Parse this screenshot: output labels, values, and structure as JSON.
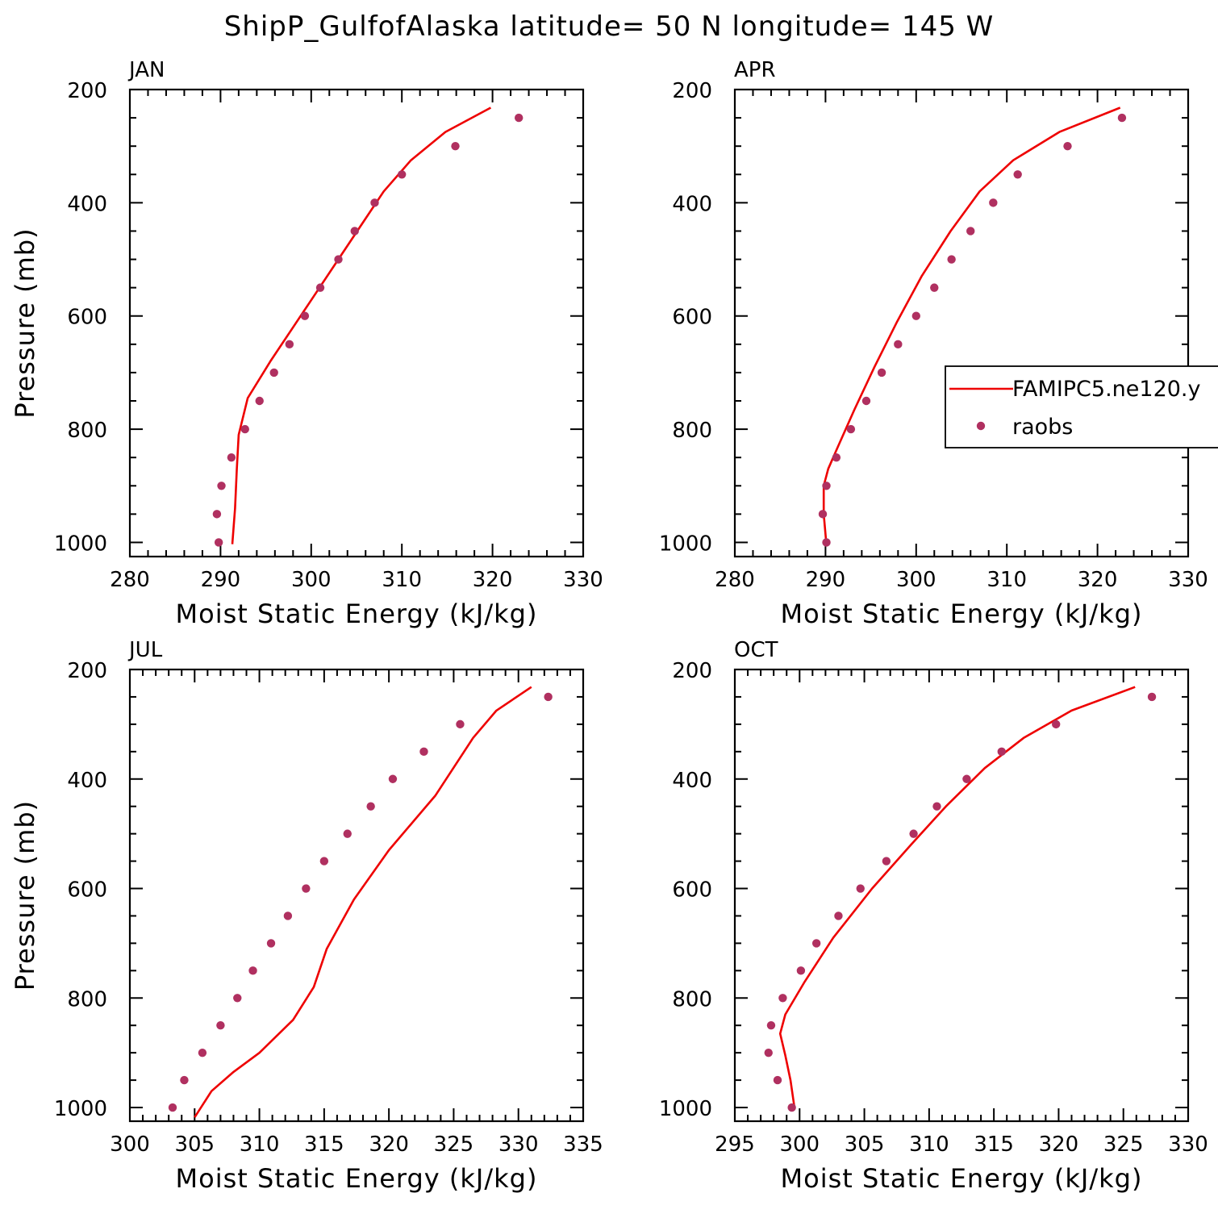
{
  "title": "ShipP_GulfofAlaska  latitude= 50 N longitude= 145 W",
  "colors": {
    "model": "#ee0000",
    "obs": "#b03060",
    "axis": "#000000"
  },
  "legend": {
    "placement": "right-middle",
    "entries": [
      {
        "label": "FAMIPC5.ne120.y",
        "style": "line",
        "color": "#ee0000"
      },
      {
        "label": "raobs",
        "style": "marker",
        "color": "#b03060"
      }
    ]
  },
  "chart_data": [
    {
      "type": "line",
      "panel": "JAN",
      "xlabel": "Moist Static Energy (kJ/kg)",
      "ylabel": "Pressure (mb)",
      "xlim": [
        280,
        330
      ],
      "ylim": [
        1025,
        200
      ],
      "xticks": [
        280,
        290,
        300,
        310,
        320,
        330
      ],
      "yticks": [
        200,
        400,
        600,
        800,
        1000
      ],
      "series": [
        {
          "name": "FAMIPC5.ne120.y",
          "style": "line",
          "x": [
            319.8,
            314.8,
            311.0,
            308.0,
            305.5,
            303.0,
            300.5,
            298.0,
            295.5,
            293.0,
            292.0,
            291.8,
            291.6,
            291.3
          ],
          "y": [
            232,
            275,
            325,
            380,
            440,
            500,
            560,
            620,
            680,
            745,
            810,
            870,
            940,
            1003
          ]
        },
        {
          "name": "raobs",
          "style": "marker",
          "x": [
            322.9,
            315.9,
            310.0,
            307.0,
            304.8,
            303.0,
            301.0,
            299.3,
            297.6,
            295.9,
            294.3,
            292.7,
            291.2,
            290.1,
            289.6,
            289.8
          ],
          "y": [
            250,
            300,
            350,
            400,
            450,
            500,
            550,
            600,
            650,
            700,
            750,
            800,
            850,
            900,
            950,
            1000
          ]
        }
      ]
    },
    {
      "type": "line",
      "panel": "APR",
      "xlabel": "Moist Static Energy (kJ/kg)",
      "ylabel": "",
      "xlim": [
        280,
        330
      ],
      "ylim": [
        1025,
        200
      ],
      "xticks": [
        280,
        290,
        300,
        310,
        320,
        330
      ],
      "yticks": [
        200,
        400,
        600,
        800,
        1000
      ],
      "series": [
        {
          "name": "FAMIPC5.ne120.y",
          "style": "line",
          "x": [
            322.5,
            315.8,
            310.7,
            307.0,
            303.8,
            300.6,
            297.9,
            295.4,
            293.2,
            291.4,
            290.3,
            289.8,
            289.8,
            290.1
          ],
          "y": [
            232,
            275,
            325,
            380,
            450,
            530,
            610,
            690,
            765,
            830,
            870,
            900,
            950,
            1003
          ]
        },
        {
          "name": "raobs",
          "style": "marker",
          "x": [
            322.7,
            316.7,
            311.2,
            308.5,
            306.0,
            303.9,
            302.0,
            300.0,
            298.0,
            296.2,
            294.5,
            292.8,
            291.2,
            290.1,
            289.7,
            290.1
          ],
          "y": [
            250,
            300,
            350,
            400,
            450,
            500,
            550,
            600,
            650,
            700,
            750,
            800,
            850,
            900,
            950,
            1000
          ]
        }
      ]
    },
    {
      "type": "line",
      "panel": "JUL",
      "xlabel": "Moist Static Energy (kJ/kg)",
      "ylabel": "Pressure (mb)",
      "xlim": [
        300,
        335
      ],
      "ylim": [
        1025,
        200
      ],
      "xticks": [
        300,
        305,
        310,
        315,
        320,
        325,
        330,
        335
      ],
      "yticks": [
        200,
        400,
        600,
        800,
        1000
      ],
      "series": [
        {
          "name": "FAMIPC5.ne120.y",
          "style": "line",
          "x": [
            331.0,
            328.3,
            326.5,
            323.6,
            320.0,
            317.3,
            315.2,
            314.2,
            312.6,
            310.0,
            308.0,
            306.3,
            305.0
          ],
          "y": [
            232,
            275,
            325,
            430,
            530,
            620,
            710,
            780,
            840,
            900,
            935,
            970,
            1018
          ]
        },
        {
          "name": "raobs",
          "style": "marker",
          "x": [
            332.3,
            325.5,
            322.7,
            320.3,
            318.6,
            316.8,
            315.0,
            313.6,
            312.2,
            310.9,
            309.5,
            308.3,
            307.0,
            305.6,
            304.2,
            303.3
          ],
          "y": [
            250,
            300,
            350,
            400,
            450,
            500,
            550,
            600,
            650,
            700,
            750,
            800,
            850,
            900,
            950,
            1000
          ]
        }
      ]
    },
    {
      "type": "line",
      "panel": "OCT",
      "xlabel": "Moist Static Energy (kJ/kg)",
      "ylabel": "",
      "xlim": [
        295,
        330
      ],
      "ylim": [
        1025,
        200
      ],
      "xticks": [
        295,
        300,
        305,
        310,
        315,
        320,
        325,
        330
      ],
      "yticks": [
        200,
        400,
        600,
        800,
        1000
      ],
      "series": [
        {
          "name": "FAMIPC5.ne120.y",
          "style": "line",
          "x": [
            325.9,
            321.0,
            317.3,
            314.3,
            311.3,
            308.6,
            305.6,
            302.6,
            300.4,
            298.9,
            298.5,
            298.9,
            299.3,
            299.6
          ],
          "y": [
            232,
            275,
            325,
            380,
            450,
            520,
            600,
            690,
            770,
            830,
            865,
            905,
            950,
            1000
          ]
        },
        {
          "name": "raobs",
          "style": "marker",
          "x": [
            327.2,
            319.8,
            315.6,
            312.9,
            310.6,
            308.8,
            306.7,
            304.7,
            303.0,
            301.3,
            300.1,
            298.7,
            297.8,
            297.6,
            298.3,
            299.4
          ],
          "y": [
            250,
            300,
            350,
            400,
            450,
            500,
            550,
            600,
            650,
            700,
            750,
            800,
            850,
            900,
            950,
            1000
          ]
        }
      ]
    }
  ]
}
